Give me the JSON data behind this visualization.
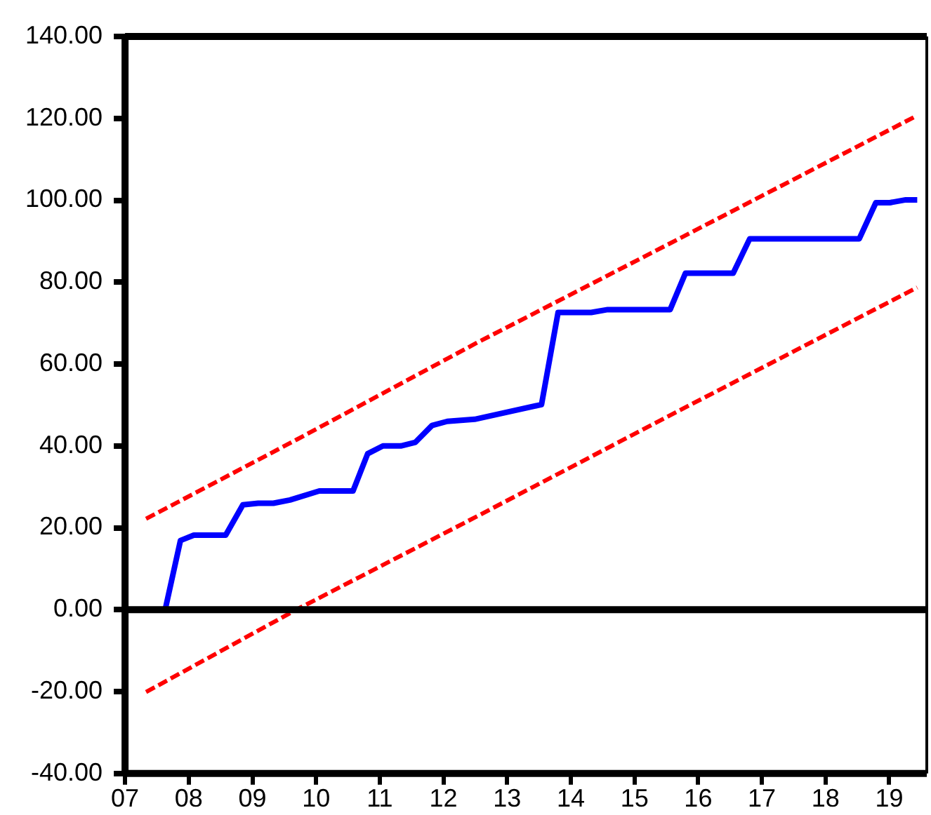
{
  "chart_data": {
    "type": "line",
    "xlim": [
      7,
      19.59
    ],
    "xticks": [
      {
        "value": 7,
        "label": "07"
      },
      {
        "value": 8,
        "label": "08"
      },
      {
        "value": 9,
        "label": "09"
      },
      10,
      11,
      12,
      13,
      14,
      15,
      16,
      17,
      18,
      19
    ],
    "ylim": [
      -40,
      140
    ],
    "yticks": [
      {
        "value": -40,
        "label": "-40.00"
      },
      {
        "value": -20,
        "label": "-20.00"
      },
      {
        "value": 0,
        "label": "0.00"
      },
      {
        "value": 20,
        "label": "20.00"
      },
      {
        "value": 40,
        "label": "40.00"
      },
      {
        "value": 60,
        "label": "60.00"
      },
      {
        "value": 80,
        "label": "80.00"
      },
      {
        "value": 100,
        "label": "100.00"
      },
      {
        "value": 120,
        "label": "120.00"
      },
      {
        "value": 140,
        "label": "140.00"
      }
    ],
    "grid": false,
    "legend": false,
    "marker": "none",
    "ref_lines": [
      {
        "axis": "y",
        "value": 0,
        "color": "#000000"
      }
    ],
    "series": [
      {
        "color": "#0000ff",
        "line_style": "solid",
        "x": [
          7.33,
          7.63,
          7.87,
          8.08,
          8.58,
          8.85,
          9.09,
          9.33,
          9.59,
          10.05,
          10.58,
          10.81,
          11.05,
          11.33,
          11.56,
          11.82,
          12.06,
          12.49,
          13.54,
          13.8,
          14.32,
          14.58,
          15.56,
          15.8,
          16.55,
          16.81,
          18.53,
          18.79,
          19.01,
          19.26,
          19.44
        ],
        "values": [
          0,
          0,
          16.9,
          18.2,
          18.2,
          25.6,
          26,
          26,
          26.8,
          29,
          29,
          38.1,
          40,
          40,
          40.9,
          45,
          46,
          46.5,
          50.1,
          72.6,
          72.6,
          73.3,
          73.3,
          82.2,
          82.2,
          90.6,
          90.6,
          99.4,
          99.4,
          100.1,
          100.1
        ]
      },
      {
        "color": "#ff0000",
        "line_style": "dashed",
        "x": [
          7.33,
          9.69,
          12.49,
          15.5,
          19.44
        ],
        "values": [
          22.2,
          41.5,
          64.9,
          89.0,
          120.7
        ]
      },
      {
        "color": "#ff0000",
        "line_style": "dashed",
        "x": [
          7.33,
          9.69,
          12.49,
          15.5,
          19.44
        ],
        "values": [
          -20.1,
          0,
          22.5,
          47.0,
          78.7
        ]
      }
    ]
  }
}
